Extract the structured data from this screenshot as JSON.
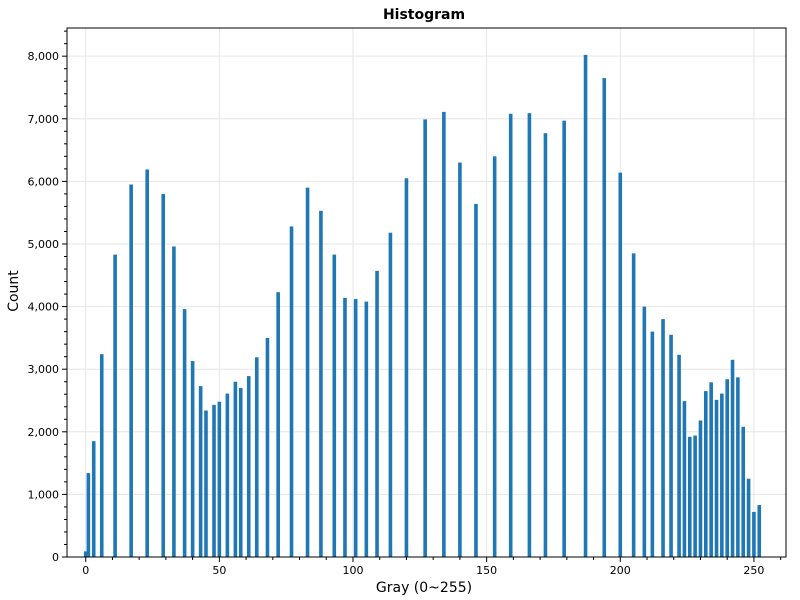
{
  "chart_data": {
    "type": "bar",
    "title": "Histogram",
    "xlabel": "Gray (0~255)",
    "ylabel": "Count",
    "xlim": [
      -7,
      262
    ],
    "ylim": [
      0,
      8450
    ],
    "x_ticks": [
      0,
      50,
      100,
      150,
      200,
      250
    ],
    "y_ticks": [
      0,
      1000,
      2000,
      3000,
      4000,
      5000,
      6000,
      7000,
      8000
    ],
    "y_tick_labels": [
      "0",
      "1,000",
      "2,000",
      "3,000",
      "4,000",
      "5,000",
      "6,000",
      "7,000",
      "8,000"
    ],
    "grid": true,
    "bar_color": "#1f77b4",
    "series": [
      {
        "x": [
          0,
          1,
          3,
          6,
          11,
          17,
          23,
          29,
          33,
          37,
          40,
          43,
          45,
          48,
          50,
          53,
          56,
          58,
          61,
          64,
          68,
          72,
          77,
          83,
          88,
          93,
          97,
          101,
          105,
          109,
          114,
          120,
          127,
          134,
          140,
          146,
          153,
          159,
          166,
          172,
          179,
          187,
          194,
          200,
          205,
          209,
          212,
          216,
          219,
          222,
          224,
          226,
          228,
          230,
          232,
          234,
          236,
          238,
          240,
          242,
          244,
          246,
          248,
          250,
          252,
          253,
          254,
          255
        ],
        "values": [
          90,
          1340,
          1850,
          3240,
          4830,
          5950,
          6190,
          5800,
          4960,
          3960,
          3130,
          2730,
          2340,
          2430,
          2480,
          2610,
          2800,
          2700,
          2890,
          3190,
          3500,
          4230,
          5280,
          5900,
          5530,
          4830,
          4140,
          4120,
          4080,
          4570,
          5180,
          6050,
          6990,
          7110,
          6300,
          5640,
          6400,
          7080,
          7090,
          6770,
          6970,
          8020,
          7650,
          6140,
          4850,
          4000,
          3600,
          3800,
          3550,
          3230,
          2490,
          1920,
          1940,
          2180,
          2650,
          2790,
          2510,
          2610,
          2840,
          3150,
          2870,
          2080,
          1250,
          720,
          830,
          0,
          0,
          0
        ]
      }
    ]
  }
}
